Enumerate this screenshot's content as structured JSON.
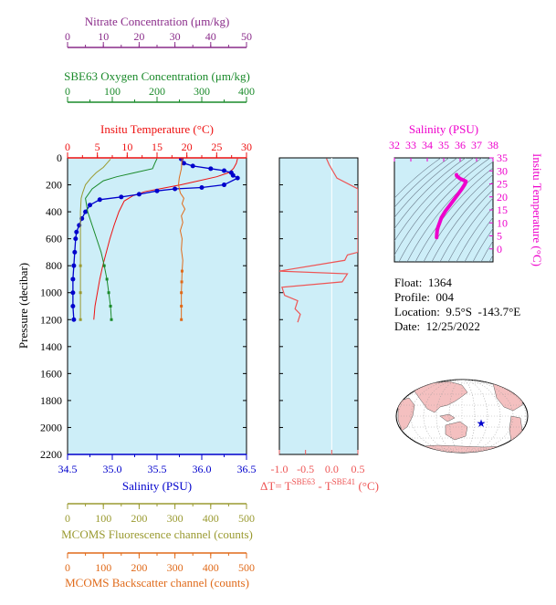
{
  "colors": {
    "nitrate": "#8a2b8a",
    "oxygen": "#1a8a2a",
    "temperature": "#ee1111",
    "salinity": "#0000cc",
    "fluorescence": "#9a9a30",
    "backscatter": "#e06a1a",
    "delta_t": "#ee5555",
    "ts_diagram": "#ee00cc",
    "panel_bg": "#cdeef8"
  },
  "info": {
    "float_label": "Float:",
    "float_value": "1364",
    "profile_label": "Profile:",
    "profile_value": "004",
    "location_label": "Location:",
    "location_value": "9.5°S  -143.7°E",
    "date_label": "Date:",
    "date_value": "12/25/2022"
  },
  "chart_data": [
    {
      "type": "line",
      "title": "",
      "ylabel": "Pressure (decibar)",
      "ylim": [
        2200,
        0
      ],
      "yticks": [
        0,
        200,
        400,
        600,
        800,
        1000,
        1200,
        1400,
        1600,
        1800,
        2000,
        2200
      ],
      "axes": {
        "nitrate": {
          "label": "Nitrate Concentration (μm/kg)",
          "range": [
            0,
            50
          ],
          "ticks": [
            0,
            10,
            20,
            30,
            40,
            50
          ]
        },
        "oxygen": {
          "label": "SBE63 Oxygen Concentration (μm/kg)",
          "range": [
            0,
            400
          ],
          "ticks": [
            0,
            100,
            200,
            300,
            400
          ]
        },
        "temperature": {
          "label": "Insitu Temperature (°C)",
          "range": [
            0,
            30
          ],
          "ticks": [
            0,
            5,
            10,
            15,
            20,
            25,
            30
          ]
        },
        "salinity": {
          "label": "Salinity (PSU)",
          "range": [
            34.5,
            36.5
          ],
          "ticks": [
            "34.5",
            "35.0",
            "35.5",
            "36.0",
            "36.5"
          ]
        },
        "fluorescence": {
          "label": "MCOMS Fluorescence channel (counts)",
          "range": [
            0,
            500
          ],
          "ticks": [
            0,
            100,
            200,
            300,
            400,
            500
          ]
        },
        "backscatter": {
          "label": "MCOMS Backscatter channel (counts)",
          "range": [
            0,
            500
          ],
          "ticks": [
            0,
            100,
            200,
            300,
            400,
            500
          ]
        }
      },
      "series": [
        {
          "name": "Insitu Temperature (°C)",
          "axis": "temperature",
          "points": [
            [
              28.5,
              5
            ],
            [
              28.3,
              40
            ],
            [
              27.8,
              80
            ],
            [
              27,
              110
            ],
            [
              25,
              140
            ],
            [
              22,
              170
            ],
            [
              19,
              200
            ],
            [
              16,
              225
            ],
            [
              13,
              250
            ],
            [
              11,
              280
            ],
            [
              9.5,
              320
            ],
            [
              8.6,
              400
            ],
            [
              7.8,
              500
            ],
            [
              7.1,
              600
            ],
            [
              6.5,
              700
            ],
            [
              5.9,
              800
            ],
            [
              5.4,
              900
            ],
            [
              5.0,
              1000
            ],
            [
              4.6,
              1100
            ],
            [
              4.4,
              1200
            ]
          ]
        },
        {
          "name": "Salinity (PSU)",
          "axis": "salinity",
          "points": [
            [
              35.77,
              8
            ],
            [
              35.8,
              40
            ],
            [
              35.9,
              60
            ],
            [
              36.1,
              80
            ],
            [
              36.25,
              95
            ],
            [
              36.33,
              110
            ],
            [
              36.35,
              130
            ],
            [
              36.4,
              150
            ],
            [
              36.25,
              200
            ],
            [
              36.0,
              220
            ],
            [
              35.7,
              230
            ],
            [
              35.5,
              245
            ],
            [
              35.3,
              270
            ],
            [
              35.1,
              290
            ],
            [
              34.86,
              310
            ],
            [
              34.75,
              350
            ],
            [
              34.7,
              400
            ],
            [
              34.66,
              450
            ],
            [
              34.63,
              500
            ],
            [
              34.6,
              550
            ],
            [
              34.59,
              600
            ],
            [
              34.58,
              700
            ],
            [
              34.57,
              800
            ],
            [
              34.56,
              900
            ],
            [
              34.56,
              1000
            ],
            [
              34.56,
              1100
            ],
            [
              34.57,
              1200
            ]
          ]
        },
        {
          "name": "SBE63 Oxygen Concentration (μm/kg)",
          "axis": "oxygen",
          "points": [
            [
              200,
              5
            ],
            [
              195,
              40
            ],
            [
              190,
              80
            ],
            [
              150,
              110
            ],
            [
              110,
              140
            ],
            [
              80,
              170
            ],
            [
              55,
              230
            ],
            [
              40,
              300
            ],
            [
              45,
              400
            ],
            [
              55,
              500
            ],
            [
              65,
              600
            ],
            [
              75,
              700
            ],
            [
              82,
              800
            ],
            [
              88,
              900
            ],
            [
              92,
              1000
            ],
            [
              96,
              1100
            ],
            [
              98,
              1200
            ]
          ]
        },
        {
          "name": "MCOMS Fluorescence channel (counts)",
          "axis": "fluorescence",
          "points": [
            [
              120,
              10
            ],
            [
              110,
              40
            ],
            [
              100,
              70
            ],
            [
              80,
              110
            ],
            [
              65,
              150
            ],
            [
              50,
              200
            ],
            [
              42,
              260
            ],
            [
              38,
              300
            ],
            [
              36,
              400
            ],
            [
              36,
              600
            ],
            [
              36,
              800
            ],
            [
              36,
              1000
            ],
            [
              36,
              1200
            ]
          ]
        },
        {
          "name": "MCOMS Backscatter channel (counts)",
          "axis": "backscatter",
          "points": [
            [
              320,
              5
            ],
            [
              318,
              80
            ],
            [
              312,
              150
            ],
            [
              310,
              200
            ],
            [
              315,
              260
            ],
            [
              325,
              300
            ],
            [
              320,
              340
            ],
            [
              328,
              380
            ],
            [
              318,
              430
            ],
            [
              322,
              480
            ],
            [
              315,
              540
            ],
            [
              320,
              600
            ],
            [
              318,
              680
            ],
            [
              322,
              760
            ],
            [
              320,
              840
            ],
            [
              319,
              920
            ],
            [
              318,
              1000
            ],
            [
              318,
              1100
            ],
            [
              318,
              1200
            ]
          ]
        }
      ]
    },
    {
      "type": "line",
      "title": "",
      "xlabel": "ΔT= T^SBE63 - T^SBE41 (°C)",
      "xlabel_parts": {
        "prefix": "ΔT= T",
        "sup1": "SBE63",
        "mid": " - T",
        "sup2": "SBE41",
        "suffix": " (°C)"
      },
      "xlim": [
        -1.0,
        0.5
      ],
      "xticks": [
        "-1.0",
        "-0.5",
        "0.0",
        "0.5"
      ],
      "ylim": [
        2200,
        0
      ],
      "series": [
        {
          "name": "ΔT",
          "points": [
            [
              -0.1,
              5
            ],
            [
              -0.05,
              50
            ],
            [
              0.1,
              150
            ],
            [
              0.5,
              230
            ],
            [
              0.5,
              700
            ],
            [
              0.3,
              720
            ],
            [
              0.25,
              760
            ],
            [
              -1.0,
              840
            ],
            [
              0.3,
              860
            ],
            [
              0.2,
              920
            ],
            [
              -0.95,
              960
            ],
            [
              -0.9,
              1020
            ],
            [
              -0.65,
              1060
            ],
            [
              -0.7,
              1120
            ],
            [
              -0.6,
              1160
            ],
            [
              -0.65,
              1220
            ]
          ]
        }
      ]
    },
    {
      "type": "scatter",
      "title": "Salinity (PSU)",
      "xlabel": "Salinity (PSU)",
      "ylabel": "Insitu Temperature (°C)",
      "xlim": [
        32,
        38
      ],
      "ylim": [
        -5,
        35
      ],
      "xticks": [
        32,
        33,
        34,
        35,
        36,
        37,
        38
      ],
      "yticks": [
        0,
        5,
        10,
        15,
        20,
        25,
        30,
        35
      ],
      "series": [
        {
          "name": "T-S",
          "points": [
            [
              34.57,
              4.4
            ],
            [
              34.58,
              5.5
            ],
            [
              34.6,
              7
            ],
            [
              34.66,
              8.5
            ],
            [
              34.75,
              10
            ],
            [
              34.86,
              12
            ],
            [
              35.1,
              14.5
            ],
            [
              35.4,
              17
            ],
            [
              35.75,
              20
            ],
            [
              36.1,
              23
            ],
            [
              36.3,
              25
            ],
            [
              36.35,
              26
            ],
            [
              36.0,
              27
            ],
            [
              35.8,
              28
            ],
            [
              35.78,
              28.5
            ]
          ]
        }
      ]
    }
  ],
  "map": {
    "marker": {
      "lat": -9.5,
      "lon": -143.7
    }
  }
}
